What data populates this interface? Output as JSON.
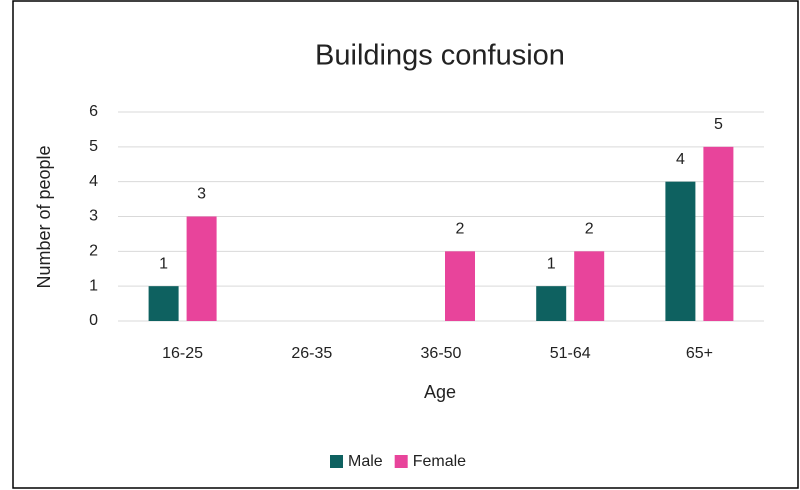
{
  "chart_data": {
    "type": "bar",
    "title": "Buildings confusion",
    "x_label": "Age",
    "y_label": "Number of people",
    "categories": [
      "16-25",
      "26-35",
      "36-50",
      "51-64",
      "65+"
    ],
    "series": [
      {
        "name": "Male",
        "color": "#0e6160",
        "values": [
          1,
          null,
          null,
          1,
          4
        ]
      },
      {
        "name": "Female",
        "color": "#e8449b",
        "values": [
          3,
          null,
          2,
          2,
          5
        ]
      }
    ],
    "ylim": [
      0,
      6
    ],
    "yticks": [
      0,
      1,
      2,
      3,
      4,
      5,
      6
    ],
    "grid": true,
    "legend": "bottom"
  }
}
